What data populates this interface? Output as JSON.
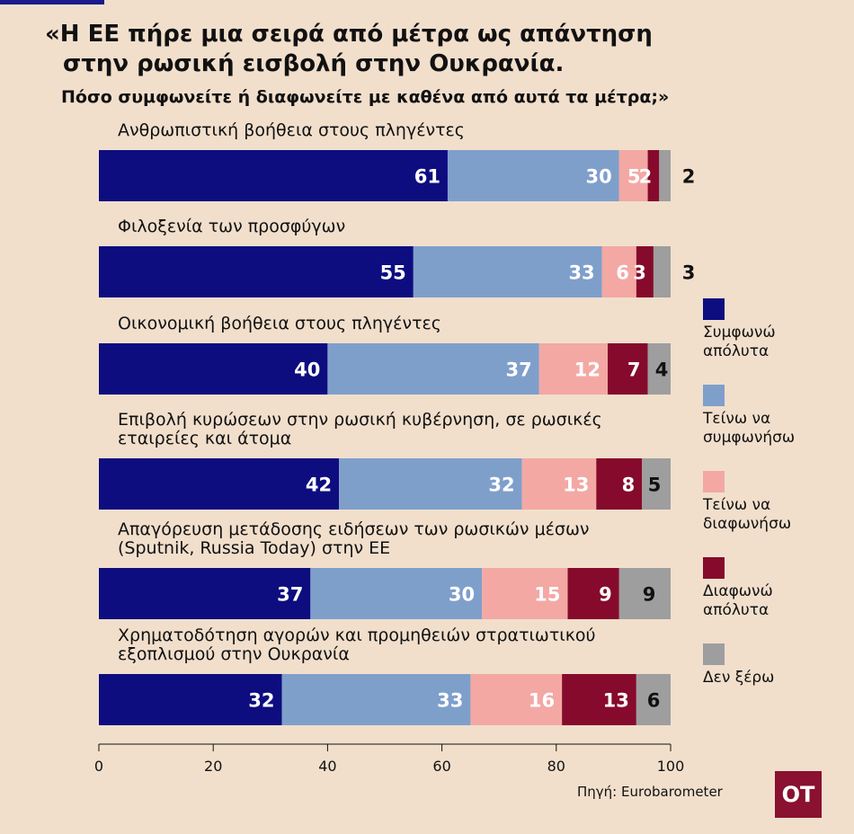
{
  "header": {
    "title_line1": "«Η ΕΕ πήρε μια σειρά από μέτρα ως απάντηση",
    "title_line2": "στην ρωσική εισβολή στην Ουκρανία.",
    "subtitle": "Πόσο συμφωνείτε ή διαφωνείτε με καθένα από αυτά τα μέτρα;»"
  },
  "footer": {
    "source": "Πηγή: Eurobarometer",
    "logo": "ΟΤ"
  },
  "colors": {
    "agree_fully": "#0d0d80",
    "tend_agree": "#7f9fcb",
    "tend_disagree": "#f3a8a4",
    "disagree_fully": "#860a2b",
    "dont_know": "#9e9e9e"
  },
  "chart_data": {
    "type": "bar",
    "orientation": "horizontal",
    "stacked": true,
    "xlim": [
      0,
      100
    ],
    "xticks": [
      "0",
      "20",
      "40",
      "60",
      "80",
      "100"
    ],
    "legend_position": "right",
    "categories": [
      [
        "Ανθρωπιστική βοήθεια στους πληγέντες"
      ],
      [
        "Φιλοξενία των προσφύγων"
      ],
      [
        "Οικονομική βοήθεια στους πληγέντες"
      ],
      [
        "Επιβολή κυρώσεων στην ρωσική κυβέρνηση, σε ρωσικές",
        "εταιρείες και άτομα"
      ],
      [
        "Απαγόρευση μετάδοσης ειδήσεων των  ρωσικών μέσων",
        "(Sputnik, Russia Today) στην ΕΕ"
      ],
      [
        "Χρηματοδότηση αγορών και προμηθειών στρατιωτικού",
        "εξοπλισμού στην Ουκρανία"
      ]
    ],
    "series": [
      {
        "name": "Συμφωνώ\nαπόλυτα",
        "color": "#0d0d80",
        "values": [
          61,
          55,
          40,
          42,
          37,
          32
        ]
      },
      {
        "name": "Τείνω να\nσυμφωνήσω",
        "color": "#7f9fcb",
        "values": [
          30,
          33,
          37,
          32,
          30,
          33
        ]
      },
      {
        "name": "Τείνω να\nδιαφωνήσω",
        "color": "#f3a8a4",
        "values": [
          5,
          6,
          12,
          13,
          15,
          16
        ]
      },
      {
        "name": "Διαφωνώ\nαπόλυτα",
        "color": "#860a2b",
        "values": [
          2,
          3,
          7,
          8,
          9,
          13
        ]
      },
      {
        "name": "Δεν ξέρω",
        "color": "#9e9e9e",
        "values": [
          2,
          3,
          4,
          5,
          9,
          6
        ]
      }
    ]
  }
}
